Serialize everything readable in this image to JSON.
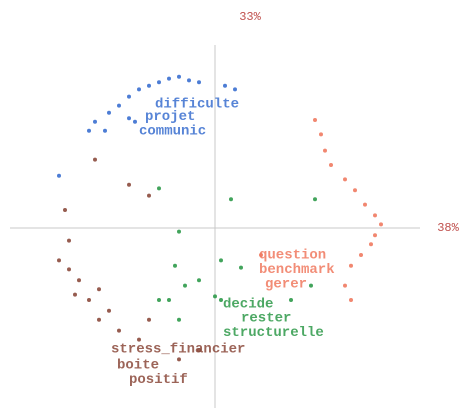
{
  "chart_data": {
    "type": "scatter",
    "xlabel": "38%",
    "ylabel": "33%",
    "xlim": [
      -1.05,
      1.05
    ],
    "ylim": [
      -1,
      1
    ],
    "series": [
      {
        "color": "#3a6fd0",
        "x": [
          -0.78,
          -0.63,
          -0.6,
          -0.55,
          -0.53,
          -0.48,
          -0.43,
          -0.38,
          -0.33,
          -0.28,
          -0.23,
          -0.18,
          -0.13,
          -0.08,
          0.05,
          0.1,
          -0.43,
          -0.4
        ],
        "values": [
          0.29,
          0.54,
          0.59,
          0.54,
          0.64,
          0.68,
          0.73,
          0.77,
          0.79,
          0.81,
          0.83,
          0.84,
          0.82,
          0.81,
          0.79,
          0.77,
          0.61,
          0.59
        ]
      },
      {
        "color": "#f07a60",
        "x": [
          0.5,
          0.53,
          0.55,
          0.58,
          0.65,
          0.7,
          0.75,
          0.8,
          0.83,
          0.8,
          0.78,
          0.73,
          0.68,
          0.65,
          0.68,
          0.23
        ],
        "values": [
          0.6,
          0.52,
          0.43,
          0.35,
          0.27,
          0.21,
          0.13,
          0.07,
          0.02,
          -0.04,
          -0.09,
          -0.15,
          -0.21,
          -0.32,
          -0.4,
          -0.15
        ]
      },
      {
        "color": "#8b4a3c",
        "x": [
          -0.75,
          -0.73,
          -0.78,
          -0.73,
          -0.68,
          -0.7,
          -0.63,
          -0.58,
          -0.53,
          -0.58,
          -0.48,
          -0.38,
          -0.33,
          -0.43,
          -0.33,
          -0.6,
          -0.08,
          -0.18
        ],
        "values": [
          0.1,
          -0.07,
          -0.18,
          -0.23,
          -0.29,
          -0.37,
          -0.4,
          -0.34,
          -0.46,
          -0.51,
          -0.57,
          -0.62,
          -0.51,
          0.24,
          0.18,
          0.38,
          -0.68,
          -0.73
        ]
      },
      {
        "color": "#2e9a4a",
        "x": [
          -0.28,
          0.08,
          -0.18,
          -0.2,
          -0.15,
          -0.23,
          -0.08,
          0.03,
          0.13,
          0.03,
          0.5,
          0.48,
          0.38,
          -0.18,
          -0.28,
          0
        ],
        "values": [
          0.22,
          0.16,
          -0.02,
          -0.21,
          -0.32,
          -0.4,
          -0.29,
          -0.4,
          -0.22,
          -0.18,
          0.16,
          -0.32,
          -0.4,
          -0.51,
          -0.4,
          -0.38
        ]
      }
    ],
    "annotations": [
      {
        "text": "difficulte",
        "x": -0.3,
        "y": 0.69,
        "color": "#3a6fd0"
      },
      {
        "text": "projet",
        "x": -0.35,
        "y": 0.62,
        "color": "#3a6fd0"
      },
      {
        "text": "communic",
        "x": -0.38,
        "y": 0.54,
        "color": "#3a6fd0"
      },
      {
        "text": "question",
        "x": 0.22,
        "y": -0.15,
        "color": "#f07a60"
      },
      {
        "text": "benchmark",
        "x": 0.22,
        "y": -0.23,
        "color": "#f07a60"
      },
      {
        "text": "gerer",
        "x": 0.25,
        "y": -0.31,
        "color": "#f07a60"
      },
      {
        "text": "decide",
        "x": 0.04,
        "y": -0.42,
        "color": "#2e9a4a"
      },
      {
        "text": "rester",
        "x": 0.13,
        "y": -0.5,
        "color": "#2e9a4a"
      },
      {
        "text": "structurelle",
        "x": 0.04,
        "y": -0.58,
        "color": "#2e9a4a"
      },
      {
        "text": "stress_financier",
        "x": -0.52,
        "y": -0.67,
        "color": "#8b4a3c"
      },
      {
        "text": "boite",
        "x": -0.49,
        "y": -0.76,
        "color": "#8b4a3c"
      },
      {
        "text": "positif",
        "x": -0.43,
        "y": -0.84,
        "color": "#8b4a3c"
      }
    ]
  }
}
